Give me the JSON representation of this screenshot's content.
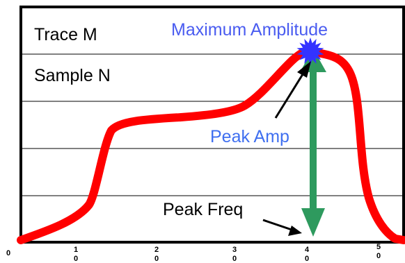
{
  "labels": {
    "trace": "Trace M",
    "sample": "Sample N",
    "max_amplitude": "Maximum Amplitude",
    "peak_amp": "Peak Amp",
    "peak_freq": "Peak Freq"
  },
  "x_ticks": [
    {
      "digit": "0",
      "sub": ""
    },
    {
      "digit": "1",
      "sub": "0"
    },
    {
      "digit": "2",
      "sub": "0"
    },
    {
      "digit": "3",
      "sub": "0"
    },
    {
      "digit": "4",
      "sub": "0"
    },
    {
      "digit": "5",
      "sub": "0"
    }
  ],
  "colors": {
    "curve": "#ff0000",
    "star": "#3333ff",
    "arrow": "#2e9a5e",
    "max_label": "#4a5cf0",
    "peak_amp_label": "#3f6ff0",
    "text": "#000000",
    "frame": "#000000"
  }
}
